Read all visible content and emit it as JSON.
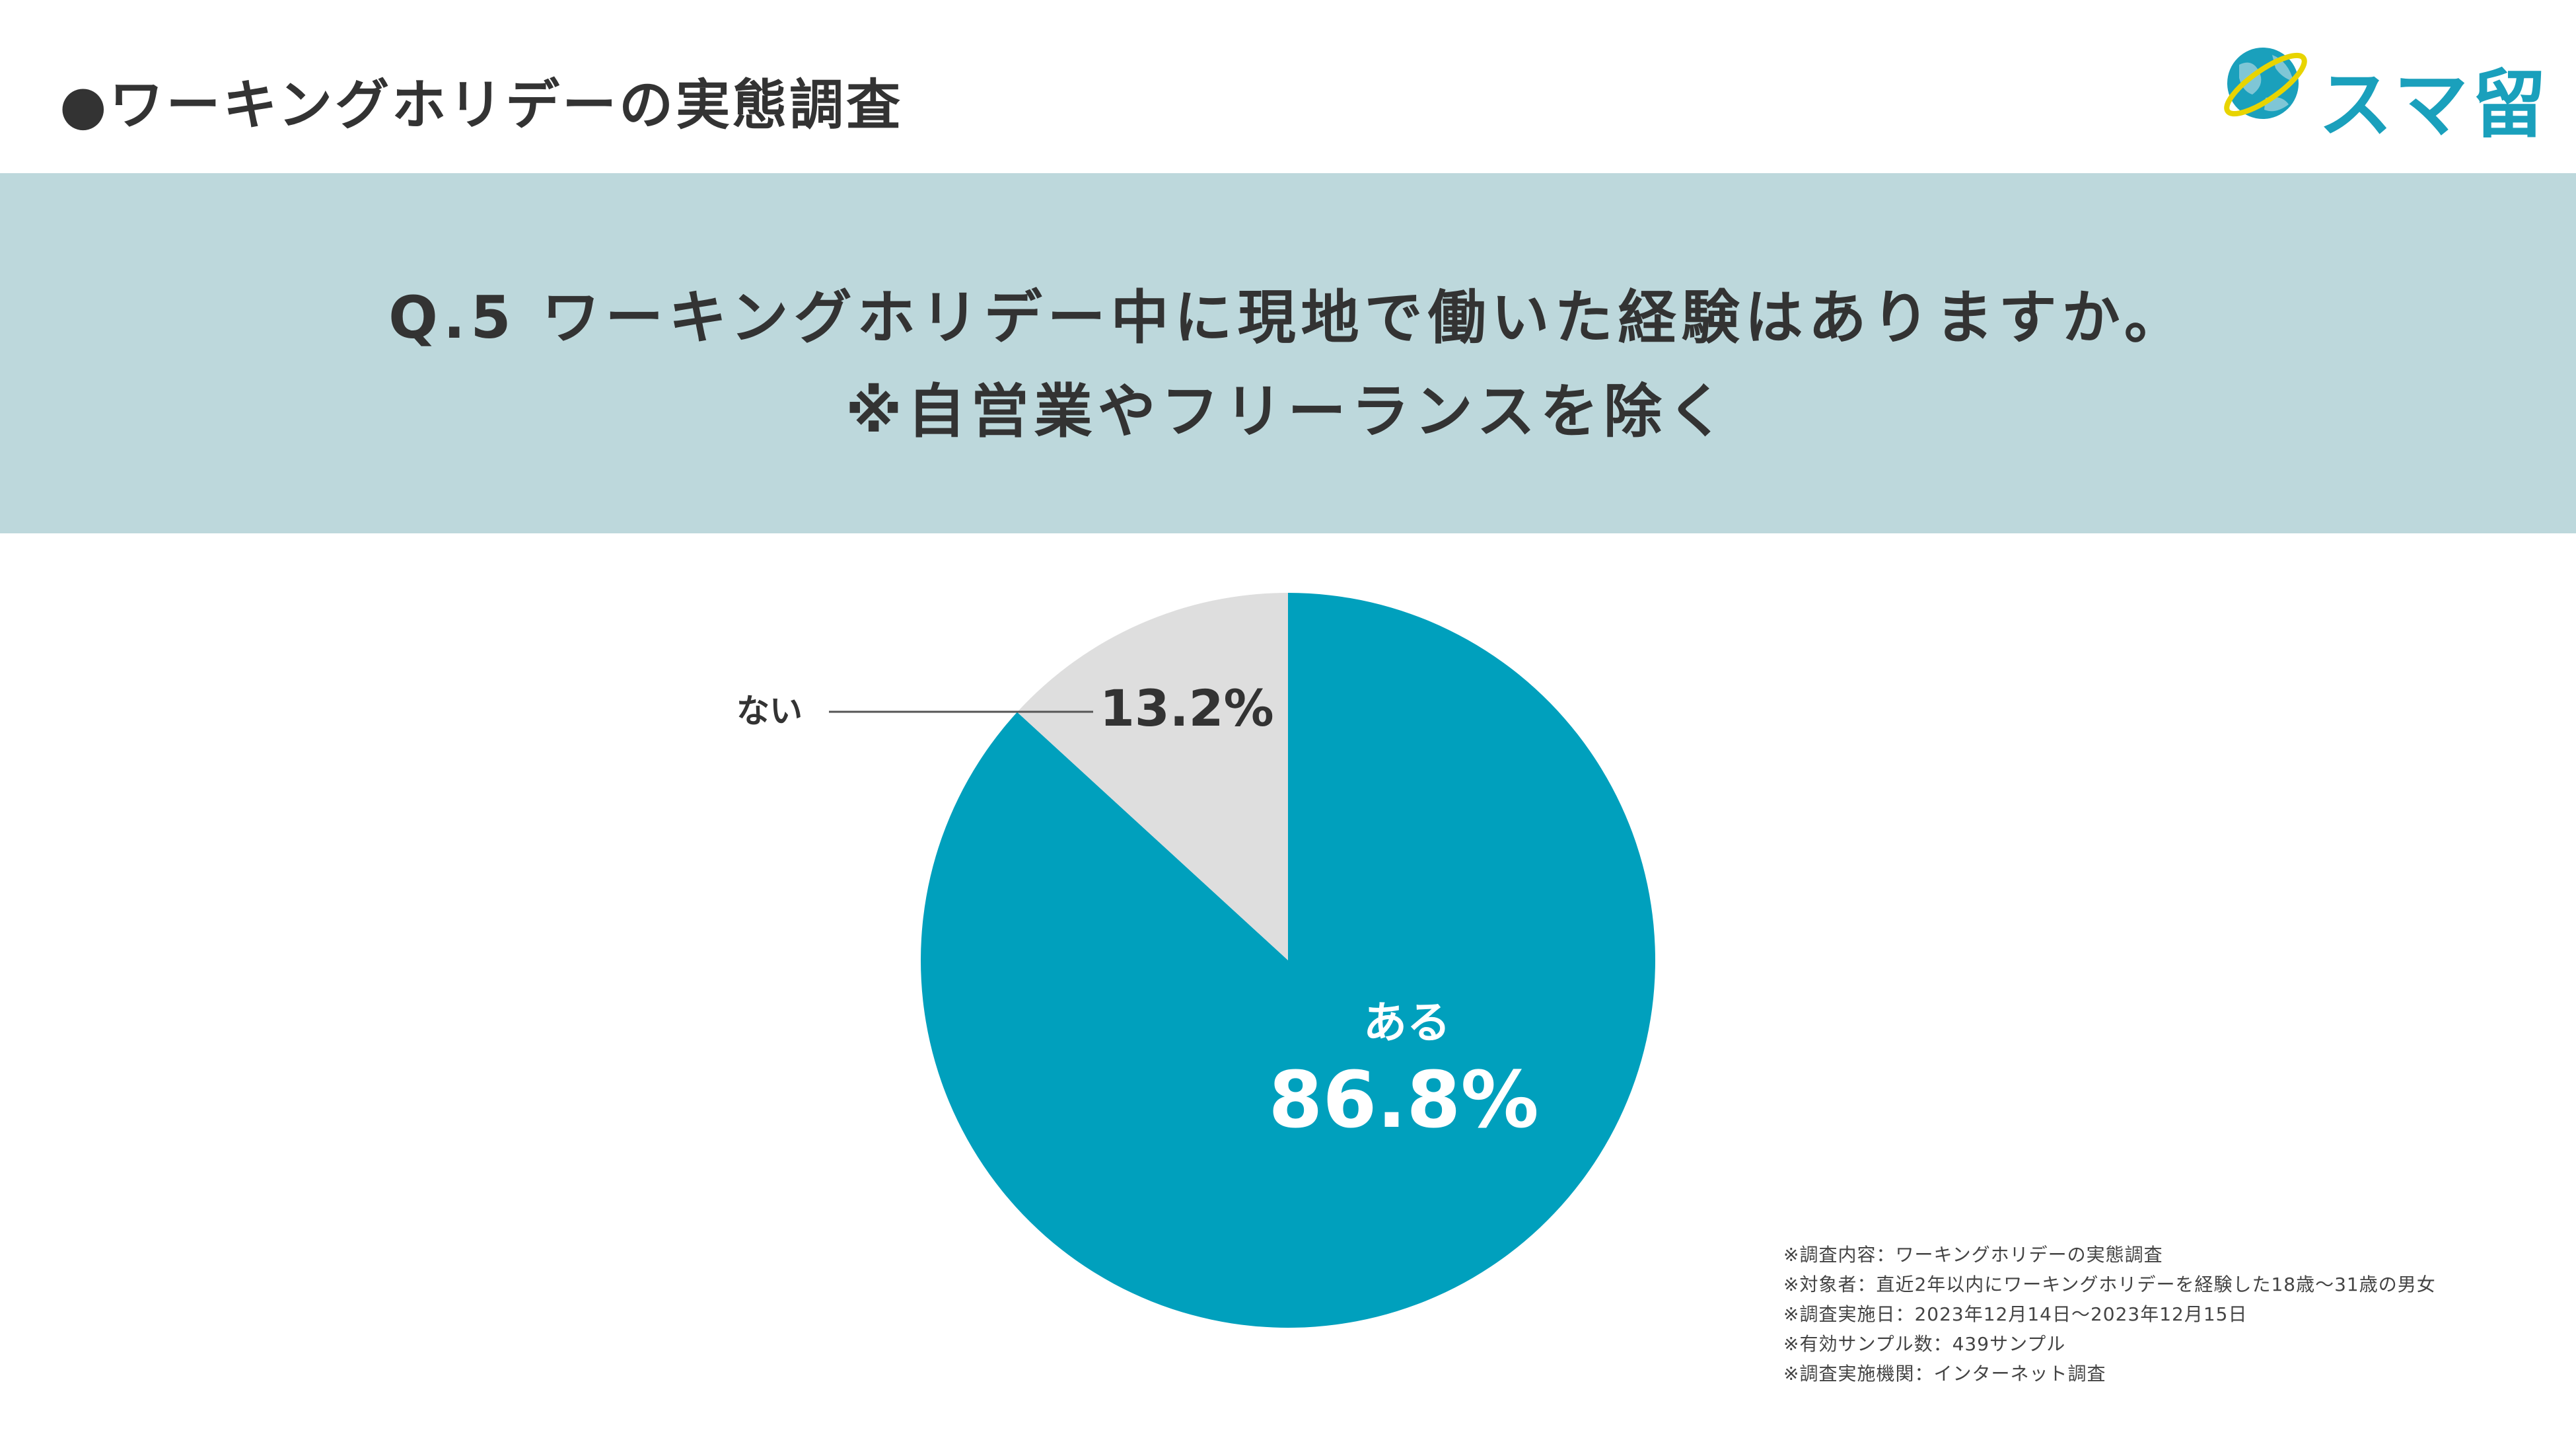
{
  "header": {
    "section_title": "●ワーキングホリデーの実態調査",
    "logo_text": "スマ留",
    "logo_icon": "globe-icon"
  },
  "question": {
    "line1": "Q.5 ワーキングホリデー中に現地で働いた経験はありますか。",
    "line2": "※自営業やフリーランスを除く"
  },
  "chart_data": {
    "type": "pie",
    "categories": [
      "ある",
      "ない"
    ],
    "values": [
      86.8,
      13.2
    ],
    "value_labels": [
      "86.8%",
      "13.2%"
    ],
    "colors": [
      "#00a0bd",
      "#dedede"
    ],
    "label_colors": [
      "#ffffff",
      "#333333"
    ],
    "start": "12 o'clock, clockwise"
  },
  "notes": [
    "※調査内容：ワーキングホリデーの実態調査",
    "※対象者：直近2年以内にワーキングホリデーを経験した18歳〜31歳の男女",
    "※調査実施日：2023年12月14日〜2023年12月15日",
    "※有効サンプル数：439サンプル",
    "※調査実施機関：インターネット調査"
  ],
  "colors": {
    "band": "#bdd8dc",
    "accent": "#00a0bd",
    "logo": "#1aa0bc",
    "text": "#333333"
  }
}
